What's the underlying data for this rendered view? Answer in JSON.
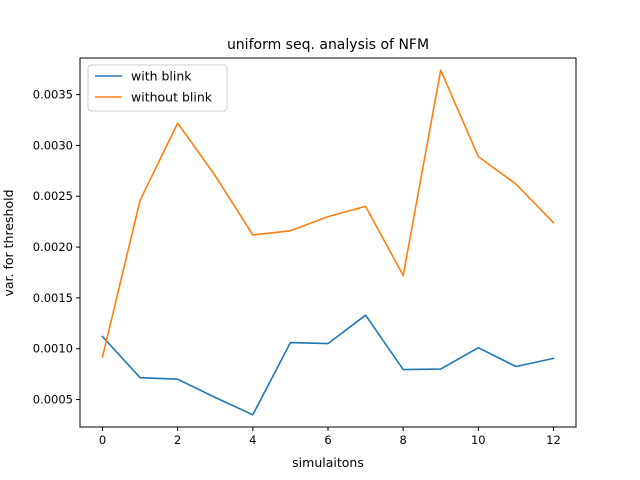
{
  "chart_data": {
    "type": "line",
    "title": "uniform seq. analysis of NFM",
    "xlabel": "simulaitons",
    "ylabel": "var. for threshold",
    "xlim": [
      -0.6,
      12.6
    ],
    "ylim": [
      0.00023,
      0.00386
    ],
    "xticks": [
      0,
      2,
      4,
      6,
      8,
      10,
      12
    ],
    "xtick_labels": [
      "0",
      "2",
      "4",
      "6",
      "8",
      "10",
      "12"
    ],
    "yticks": [
      0.0005,
      0.001,
      0.0015,
      0.002,
      0.0025,
      0.003,
      0.0035
    ],
    "ytick_labels": [
      "0.0005",
      "0.0010",
      "0.0015",
      "0.0020",
      "0.0025",
      "0.0030",
      "0.0035"
    ],
    "grid": false,
    "legend_position": "top-left",
    "x": [
      0,
      1,
      2,
      3,
      4,
      5,
      6,
      7,
      8,
      9,
      10,
      11,
      12
    ],
    "series": [
      {
        "name": "with blink",
        "color": "#1f77b4",
        "values": [
          0.00112,
          0.000715,
          0.0007,
          0.00052,
          0.00035,
          0.00106,
          0.00105,
          0.00133,
          0.000795,
          0.0008,
          0.00101,
          0.000825,
          0.000905
        ]
      },
      {
        "name": "without blink",
        "color": "#ff7f0e",
        "values": [
          0.00092,
          0.00246,
          0.00322,
          0.0027,
          0.00212,
          0.00216,
          0.0023,
          0.0024,
          0.00172,
          0.00374,
          0.00289,
          0.00262,
          0.00224
        ]
      }
    ]
  }
}
